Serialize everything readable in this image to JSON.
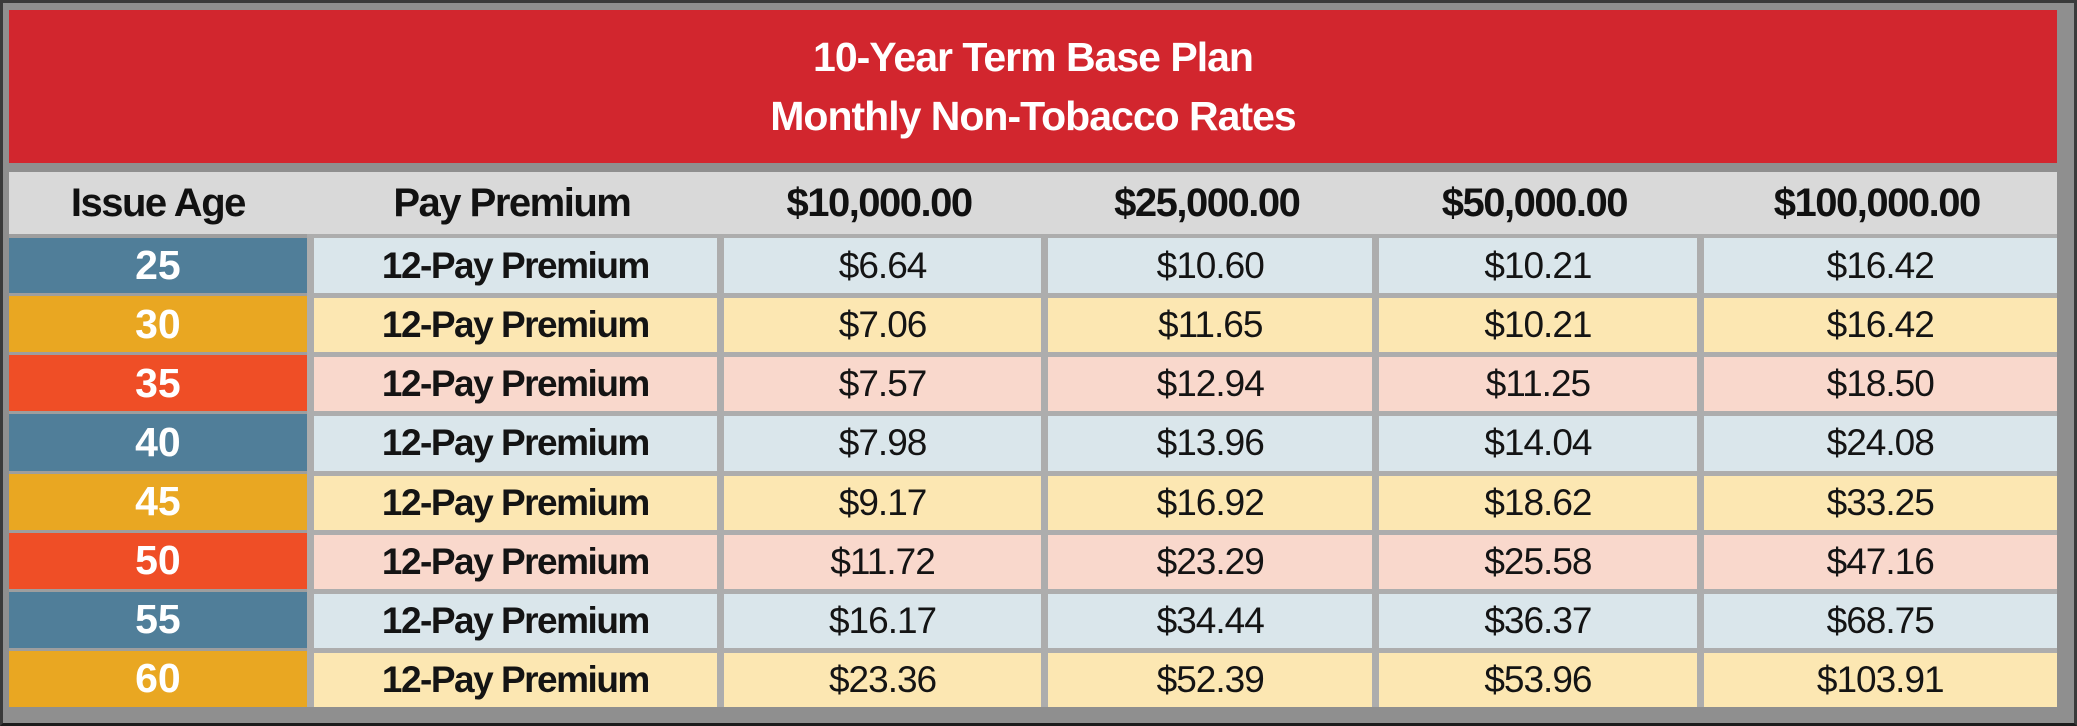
{
  "title": {
    "line1": "10-Year Term Base Plan",
    "line2": "Monthly Non-Tobacco Rates"
  },
  "table": {
    "columns": [
      "Issue Age",
      "Pay Premium",
      "$10,000.00",
      "$25,000.00",
      "$50,000.00",
      "$100,000.00"
    ],
    "rows": [
      {
        "age": "25",
        "premium_type": "12-Pay Premium",
        "values": [
          "$6.64",
          "$10.60",
          "$10.21",
          "$16.42"
        ],
        "theme": "blue"
      },
      {
        "age": "30",
        "premium_type": "12-Pay Premium",
        "values": [
          "$7.06",
          "$11.65",
          "$10.21",
          "$16.42"
        ],
        "theme": "orange"
      },
      {
        "age": "35",
        "premium_type": "12-Pay Premium",
        "values": [
          "$7.57",
          "$12.94",
          "$11.25",
          "$18.50"
        ],
        "theme": "red"
      },
      {
        "age": "40",
        "premium_type": "12-Pay Premium",
        "values": [
          "$7.98",
          "$13.96",
          "$14.04",
          "$24.08"
        ],
        "theme": "blue"
      },
      {
        "age": "45",
        "premium_type": "12-Pay Premium",
        "values": [
          "$9.17",
          "$16.92",
          "$18.62",
          "$33.25"
        ],
        "theme": "orange"
      },
      {
        "age": "50",
        "premium_type": "12-Pay Premium",
        "values": [
          "$11.72",
          "$23.29",
          "$25.58",
          "$47.16"
        ],
        "theme": "red"
      },
      {
        "age": "55",
        "premium_type": "12-Pay Premium",
        "values": [
          "$16.17",
          "$34.44",
          "$36.37",
          "$68.75"
        ],
        "theme": "blue"
      },
      {
        "age": "60",
        "premium_type": "12-Pay Premium",
        "values": [
          "$23.36",
          "$52.39",
          "$53.96",
          "$103.91"
        ],
        "theme": "orange"
      }
    ]
  },
  "colors": {
    "banner_red": "#D2262E",
    "frame_gray": "#8F8F8F",
    "cell_border_gray": "#ADADAD",
    "header_bg": "#D9D9D9",
    "age_blue": "#507E99",
    "age_orange": "#E9A722",
    "age_red": "#EF4E26",
    "row_blue": "#DAE6EB",
    "row_yellow": "#FCE7B2",
    "row_pink": "#F9D8CC",
    "text_black": "#141414",
    "text_white": "#FFFFFF"
  }
}
